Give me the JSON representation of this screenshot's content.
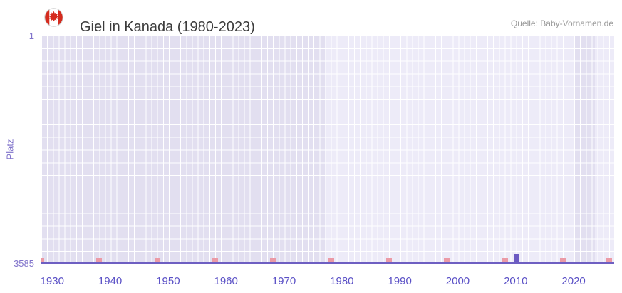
{
  "header": {
    "title": "Giel in Kanada (1980-2023)",
    "source": "Quelle: Baby-Vornamen.de",
    "flag": "canada-flag-icon"
  },
  "chart_data": {
    "type": "bar",
    "title": "Giel in Kanada (1980-2023)",
    "ylabel": "Platz",
    "y_axis": {
      "top_label": "1",
      "bottom_label": "3585",
      "min": 1,
      "max": 3585,
      "inverted": true
    },
    "x_axis": {
      "ticks": [
        "1930",
        "1940",
        "1950",
        "1960",
        "1970",
        "1980",
        "1990",
        "2000",
        "2010",
        "2020"
      ],
      "tick_years": [
        1930,
        1940,
        1950,
        1960,
        1970,
        1980,
        1990,
        2000,
        2010,
        2020
      ],
      "range": [
        1928,
        2027
      ]
    },
    "series": [
      {
        "name": "Platz",
        "points": [
          {
            "year": 2010,
            "rank": 3585
          }
        ]
      }
    ],
    "bands": [
      {
        "from": 1928,
        "to": 1977
      },
      {
        "from": 2020,
        "to": 2023.5
      }
    ],
    "bottom_marks": {
      "years": [
        1928,
        1938,
        1948,
        1958,
        1968,
        1978,
        1988,
        1998,
        2008,
        2018,
        2026
      ]
    },
    "legend": "off",
    "grid": "on",
    "style": {
      "plot_bg": "#edebf8",
      "band": "#e2dff0",
      "grid": "#ffffff",
      "axis_line": "#6e5fc2",
      "x_label_color": "#5a50c6",
      "y_label_color": "#8073cb",
      "bar_color": "#6c5ac2",
      "mark_color": "#eb9aa6",
      "flag_red": "#d52b1e",
      "title_color": "#3c3c3c",
      "source_color": "#9b9b9b"
    }
  }
}
